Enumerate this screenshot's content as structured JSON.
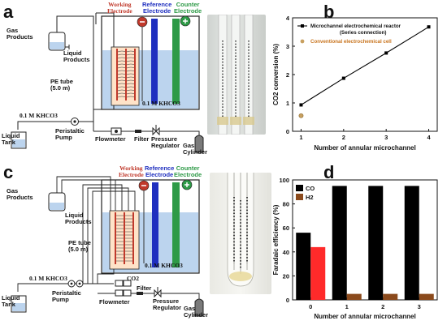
{
  "panels": {
    "a": {
      "letter": "a"
    },
    "b": {
      "letter": "b"
    },
    "c": {
      "letter": "c"
    },
    "d": {
      "letter": "d"
    }
  },
  "schematic_a": {
    "gas_products": "Gas\nProducts",
    "liquid_products": "Liquid\nProducts",
    "working_electrode": "Working\nElectrode",
    "reference_electrode": "Reference\nElectrode",
    "counter_electrode": "Counter\nElectrode",
    "pe_tube": "PE tube\n(5.0 m)",
    "electrolyte": "0.1 M KHCO3",
    "feed": "0.1 M KHCO3",
    "liquid_tank": "Liquid\nTank",
    "peristaltic_pump": "Peristaltic\nPump",
    "flowmeter": "Flowmeter",
    "filter": "Filter",
    "pressure_regulator": "Pressure\nRegulator",
    "gas_cylinder": "Gas\nCylinder"
  },
  "schematic_c": {
    "gas_products": "Gas\nProducts",
    "liquid_products": "Liquid\nProducts",
    "working_electrode": "Working\nElectrode",
    "reference_electrode": "Reference\nElectrode",
    "counter_electrode": "Counter\nElectrode",
    "pe_tube": "PE tube\n(5.0 m)",
    "electrolyte": "0.1 M KHCO3",
    "feed": "0.1 M KHCO3",
    "co2": "CO2",
    "liquid_tank": "Liquid\nTank",
    "peristaltic_pump": "Peristaltic\nPump",
    "flowmeter": "Flowmeter",
    "filter": "Filter",
    "pressure_regulator": "Pressure\nRegulator",
    "gas_cylinder": "Gas\nCylinder"
  },
  "colors": {
    "working": "#c0392b",
    "reference": "#1f2fbf",
    "counter": "#2e9a47",
    "electrolyte": "#bcd4ee",
    "co_bar": "#000000",
    "h2_bar": "#8b4a1c",
    "highlight_bar": "#ff2a2a"
  },
  "chart_data": [
    {
      "type": "line",
      "panel": "b",
      "title": "",
      "xlabel": "Number of annular microchannel",
      "ylabel": "CO2 conversion (%)",
      "xlim": [
        0.8,
        4.2
      ],
      "ylim": [
        0,
        4
      ],
      "xticks": [
        "1",
        "2",
        "3",
        "4"
      ],
      "yticks": [
        "0",
        "1",
        "2",
        "3",
        "4"
      ],
      "legend_position": "top-left",
      "series": [
        {
          "name": "Microchannel electrochemical reactor\n(Series connection)",
          "color": "#000000",
          "x": [
            1,
            2,
            3,
            4
          ],
          "y": [
            0.93,
            1.87,
            2.76,
            3.68
          ]
        },
        {
          "name": "Conventional electrochemical cell",
          "color": "#c8a060",
          "x": [
            1
          ],
          "y": [
            0.55
          ]
        }
      ]
    },
    {
      "type": "bar",
      "panel": "d",
      "title": "",
      "xlabel": "Number of annular microchannel",
      "ylabel": "Faradaic efficiency (%)",
      "ylim": [
        0,
        100
      ],
      "categories": [
        "0",
        "1",
        "2",
        "3"
      ],
      "yticks": [
        "0",
        "20",
        "40",
        "60",
        "80",
        "100"
      ],
      "legend_position": "top-left",
      "series": [
        {
          "name": "CO",
          "color": "#000000",
          "values": [
            56,
            95,
            95,
            95
          ]
        },
        {
          "name": "H2",
          "color": "#8b4a1c",
          "values": [
            44,
            5,
            5,
            5
          ]
        }
      ]
    }
  ]
}
